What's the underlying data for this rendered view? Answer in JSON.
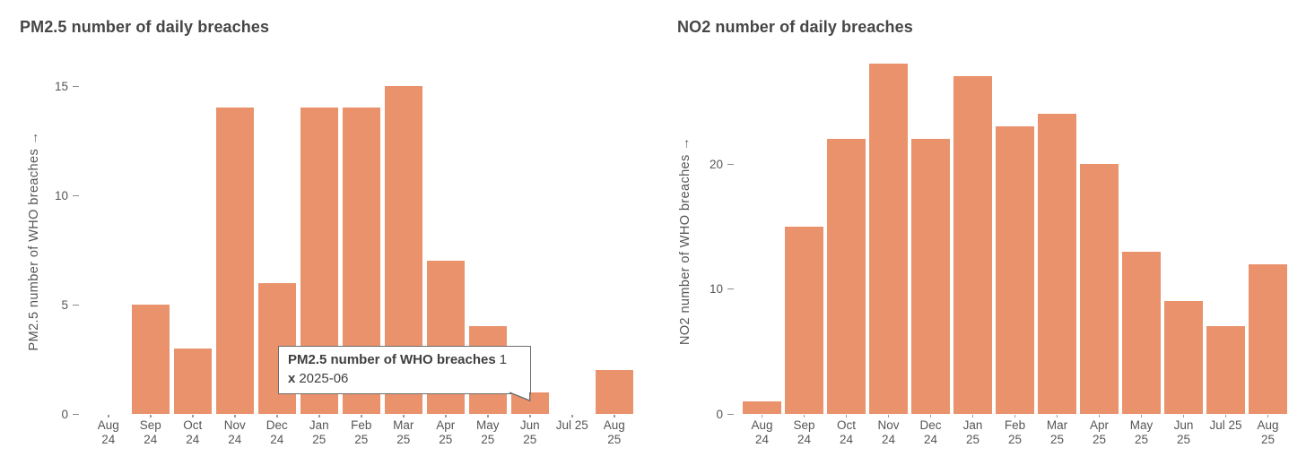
{
  "chart_data": [
    {
      "type": "bar",
      "title": "PM2.5 number of daily breaches",
      "xlabel": "",
      "ylabel": "PM2.5 number of WHO breaches →",
      "categories": [
        "Aug 24",
        "Sep 24",
        "Oct 24",
        "Nov 24",
        "Dec 24",
        "Jan 25",
        "Feb 25",
        "Mar 25",
        "Apr 25",
        "May 25",
        "Jun 25",
        "Jul 25",
        "Aug 25"
      ],
      "xtick_labels": [
        "Aug\n24",
        "Sep\n24",
        "Oct\n24",
        "Nov\n24",
        "Dec\n24",
        "Jan\n25",
        "Feb\n25",
        "Mar\n25",
        "Apr\n25",
        "May\n25",
        "Jun\n25",
        "Jul 25",
        "Aug\n25"
      ],
      "values": [
        0,
        5,
        3,
        14,
        6,
        14,
        14,
        15,
        7,
        4,
        1,
        0,
        2
      ],
      "yticks": [
        0,
        5,
        10,
        15
      ],
      "ylim": [
        0,
        15
      ],
      "grid": false,
      "legend": false
    },
    {
      "type": "bar",
      "title": "NO2 number of daily breaches",
      "xlabel": "",
      "ylabel": "NO2 number of WHO breaches →",
      "categories": [
        "Aug 24",
        "Sep 24",
        "Oct 24",
        "Nov 24",
        "Dec 24",
        "Jan 25",
        "Feb 25",
        "Mar 25",
        "Apr 25",
        "May 25",
        "Jun 25",
        "Jul 25",
        "Aug 25"
      ],
      "xtick_labels": [
        "Aug\n24",
        "Sep\n24",
        "Oct\n24",
        "Nov\n24",
        "Dec\n24",
        "Jan\n25",
        "Feb\n25",
        "Mar\n25",
        "Apr\n25",
        "May\n25",
        "Jun\n25",
        "Jul 25",
        "Aug\n25"
      ],
      "values": [
        1,
        15,
        22,
        28,
        22,
        27,
        23,
        24,
        20,
        13,
        9,
        7,
        12
      ],
      "yticks": [
        0,
        10,
        20
      ],
      "ylim": [
        0,
        28
      ],
      "grid": false,
      "legend": false
    }
  ],
  "tooltip": {
    "series_label": "PM2.5 number of WHO breaches",
    "value": "1",
    "x_key": "x",
    "x_value": "2025-06"
  },
  "colors": {
    "bar_fill": "#ea926c",
    "title_text": "#464646",
    "axis_text": "#565656",
    "tick_mark": "#9a9a9a",
    "tooltip_border": "#6e6e6e",
    "tooltip_text": "#3f3f3f",
    "background": "#ffffff"
  }
}
